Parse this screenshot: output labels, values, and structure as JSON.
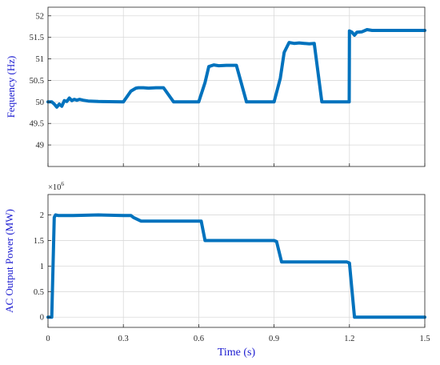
{
  "chart_data": [
    {
      "type": "line",
      "ylabel": "Fequency (Hz)",
      "xlabel": "",
      "xlim": [
        0,
        1.5
      ],
      "ylim": [
        48.5,
        52.2
      ],
      "x_ticks": [
        0,
        0.3,
        0.6,
        0.9,
        1.2,
        1.5
      ],
      "y_ticks": [
        49,
        49.5,
        50,
        50.5,
        51,
        51.5,
        52
      ],
      "y_tick_labels": [
        "49",
        "49.5",
        "50",
        "50.5",
        "51",
        "51.5",
        "52"
      ],
      "grid": true,
      "series": [
        {
          "color": "#0072BD",
          "x": [
            0,
            0.015,
            0.025,
            0.035,
            0.045,
            0.055,
            0.065,
            0.075,
            0.085,
            0.095,
            0.105,
            0.115,
            0.125,
            0.14,
            0.16,
            0.2,
            0.3,
            0.33,
            0.35,
            0.36,
            0.38,
            0.4,
            0.43,
            0.46,
            0.5,
            0.55,
            0.6,
            0.625,
            0.64,
            0.66,
            0.68,
            0.71,
            0.75,
            0.79,
            0.8,
            0.825,
            0.9,
            0.925,
            0.94,
            0.96,
            0.98,
            1.0,
            1.02,
            1.04,
            1.06,
            1.09,
            1.1,
            1.13,
            1.199,
            1.2,
            1.21,
            1.22,
            1.23,
            1.25,
            1.27,
            1.29,
            1.5
          ],
          "y": [
            50.0,
            50.0,
            49.95,
            49.88,
            49.95,
            49.9,
            50.03,
            50.01,
            50.09,
            50.03,
            50.06,
            50.04,
            50.06,
            50.04,
            50.02,
            50.01,
            50.0,
            50.25,
            50.32,
            50.33,
            50.33,
            50.32,
            50.33,
            50.33,
            50.0,
            50.0,
            50.0,
            50.45,
            50.82,
            50.86,
            50.84,
            50.85,
            50.85,
            50.0,
            50.0,
            50.0,
            50.0,
            50.55,
            51.15,
            51.38,
            51.36,
            51.37,
            51.36,
            51.35,
            51.36,
            50.0,
            50.0,
            50.0,
            50.0,
            51.65,
            51.62,
            51.55,
            51.62,
            51.63,
            51.68,
            51.66,
            51.66
          ]
        }
      ]
    },
    {
      "type": "line",
      "ylabel": "AC Output Power (MW)",
      "xlabel": "Time (s)",
      "xlim": [
        0,
        1.5
      ],
      "ylim": [
        -0.2,
        2.4
      ],
      "x_ticks": [
        0,
        0.3,
        0.6,
        0.9,
        1.2,
        1.5
      ],
      "x_tick_labels": [
        "0",
        "0.3",
        "0.6",
        "0.9",
        "1.2",
        "1.5"
      ],
      "y_ticks": [
        0,
        0.5,
        1,
        1.5,
        2
      ],
      "y_tick_labels": [
        "0",
        "0.5",
        "1",
        "1.5",
        "2"
      ],
      "y_multiplier": "×10",
      "y_multiplier_exp": "6",
      "grid": true,
      "series": [
        {
          "color": "#0072BD",
          "x": [
            0,
            0.015,
            0.025,
            0.03,
            0.04,
            0.1,
            0.2,
            0.3,
            0.33,
            0.34,
            0.37,
            0.5,
            0.6,
            0.61,
            0.625,
            0.8,
            0.9,
            0.91,
            0.93,
            1.05,
            1.19,
            1.2,
            1.22,
            1.5
          ],
          "y": [
            0,
            0,
            1.95,
            2.0,
            1.99,
            1.99,
            2.0,
            1.99,
            1.99,
            1.95,
            1.88,
            1.88,
            1.88,
            1.88,
            1.5,
            1.5,
            1.5,
            1.48,
            1.08,
            1.08,
            1.08,
            1.06,
            0,
            0
          ]
        }
      ]
    }
  ]
}
